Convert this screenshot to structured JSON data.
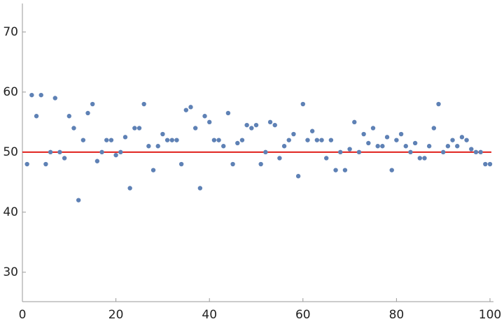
{
  "chart_data": {
    "type": "scatter",
    "x": [
      1,
      2,
      3,
      4,
      5,
      6,
      7,
      8,
      9,
      10,
      11,
      12,
      13,
      14,
      15,
      16,
      17,
      18,
      19,
      20,
      21,
      22,
      23,
      24,
      25,
      26,
      27,
      28,
      29,
      30,
      31,
      32,
      33,
      34,
      35,
      36,
      37,
      38,
      39,
      40,
      41,
      42,
      43,
      44,
      45,
      46,
      47,
      48,
      49,
      50,
      51,
      52,
      53,
      54,
      55,
      56,
      57,
      58,
      59,
      60,
      61,
      62,
      63,
      64,
      65,
      66,
      67,
      68,
      69,
      70,
      71,
      72,
      73,
      74,
      75,
      76,
      77,
      78,
      79,
      80,
      81,
      82,
      83,
      84,
      85,
      86,
      87,
      88,
      89,
      90,
      91,
      92,
      93,
      94,
      95,
      96,
      97,
      98,
      99,
      100
    ],
    "values": [
      48,
      59.5,
      56,
      59.5,
      48,
      50,
      59,
      50,
      49,
      56,
      54,
      42,
      52,
      56.5,
      58,
      48.5,
      50,
      52,
      52,
      49.5,
      50,
      52.5,
      44,
      54,
      54,
      58,
      51,
      47,
      51,
      53,
      52,
      52,
      52,
      48,
      57,
      57.5,
      54,
      44,
      56,
      55,
      52,
      52,
      51,
      56.5,
      48,
      51.5,
      52,
      54.5,
      54,
      54.5,
      48,
      50,
      55,
      54.5,
      49,
      51,
      52,
      53,
      46,
      58,
      52,
      53.5,
      52,
      52,
      49,
      52,
      47,
      50,
      47,
      50.5,
      55,
      50,
      53,
      51.5,
      54,
      51,
      51,
      52.5,
      47,
      52,
      53,
      51,
      50,
      51.5,
      49,
      49,
      51,
      54,
      58,
      50,
      51,
      52,
      51,
      52.5,
      52,
      50.5,
      50,
      50,
      48,
      48
    ],
    "color": "#5e81b5",
    "hline": 50,
    "hline_color": "#e0201b",
    "xlim": [
      0,
      100.75
    ],
    "ylim": [
      25.1,
      74.75
    ],
    "xticks": [
      0,
      20,
      40,
      60,
      80,
      100
    ],
    "yticks": [
      30,
      40,
      50,
      60,
      70
    ]
  }
}
